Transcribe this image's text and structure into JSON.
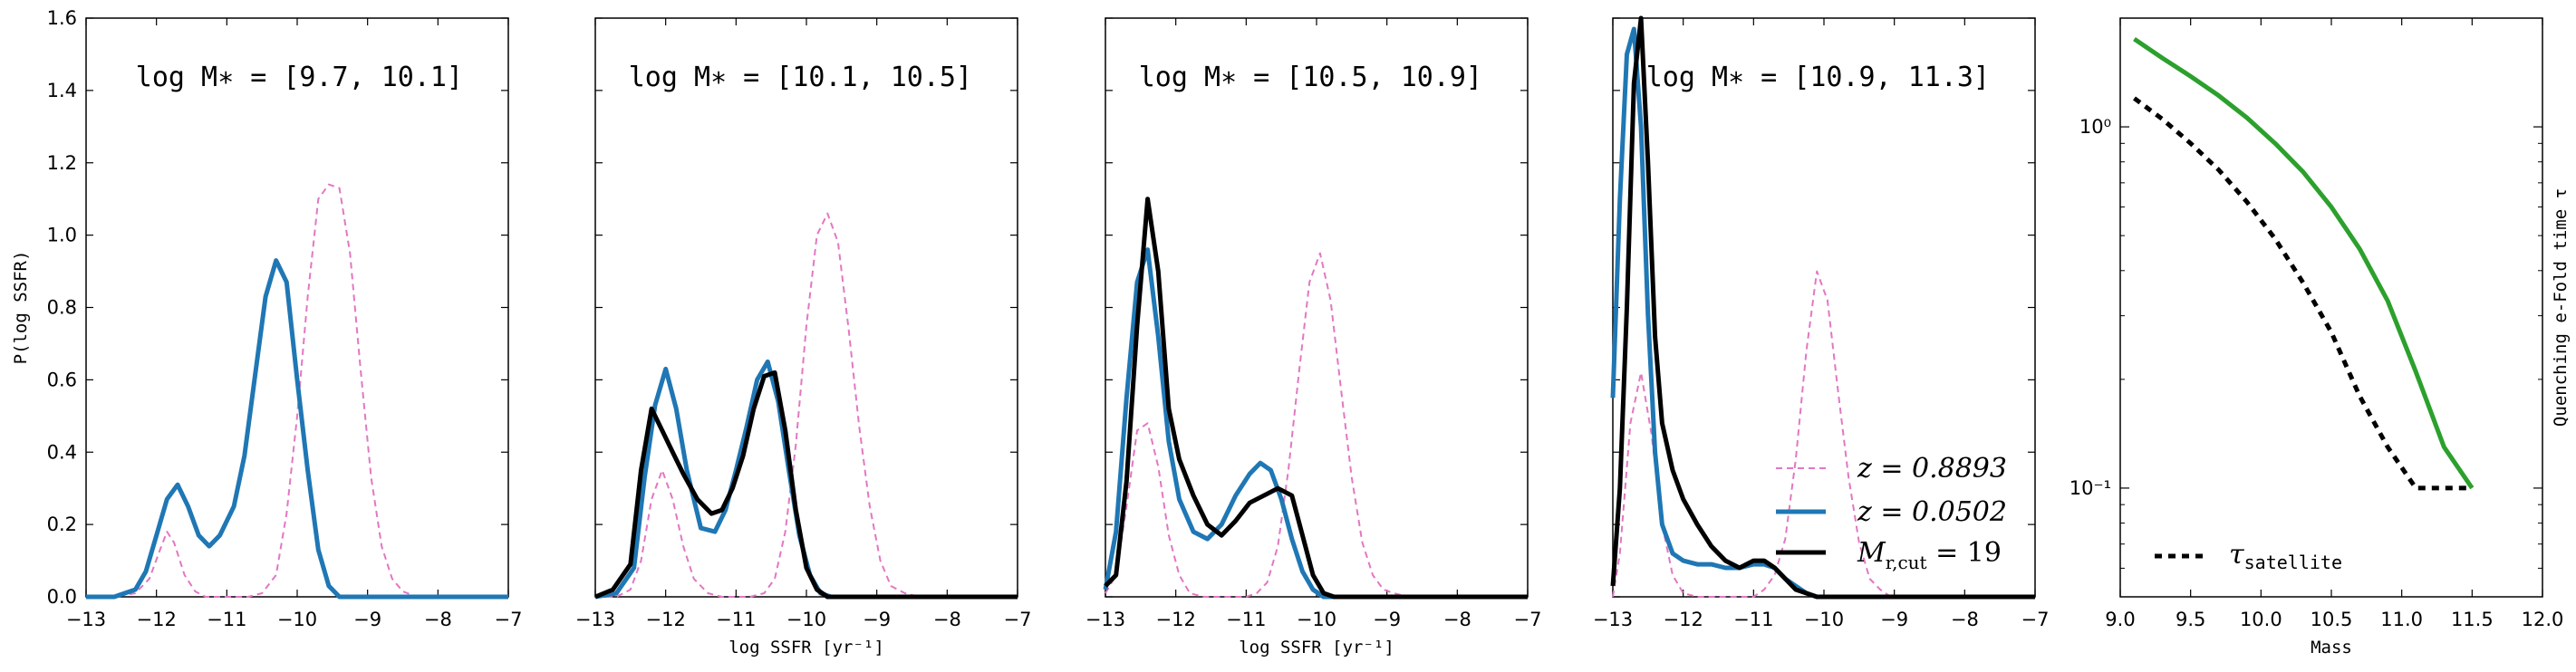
{
  "chart_data": [
    {
      "type": "line",
      "title": "log M∗ = [9.7, 10.1]",
      "xlim": [
        -13,
        -7
      ],
      "ylim": [
        0,
        1.6
      ],
      "xticks": [
        "−13",
        "−12",
        "−11",
        "−10",
        "−9",
        "−8",
        "−7"
      ],
      "yticks": [
        "0.0",
        "0.2",
        "0.4",
        "0.6",
        "0.8",
        "1.0",
        "1.2",
        "1.4",
        "1.6"
      ],
      "ylabel": "P(log SSFR)",
      "xlabel": "",
      "series": [
        {
          "name": "z = 0.8893",
          "color": "#e377c2",
          "dash": true,
          "x": [
            -13,
            -12.6,
            -12.3,
            -12.1,
            -11.95,
            -11.85,
            -11.75,
            -11.6,
            -11.45,
            -11.3,
            -11.1,
            -10.9,
            -10.7,
            -10.5,
            -10.3,
            -10.15,
            -10.0,
            -9.85,
            -9.7,
            -9.55,
            -9.4,
            -9.25,
            -9.1,
            -8.95,
            -8.8,
            -8.65,
            -8.5,
            -8.3,
            -8.1,
            -7
          ],
          "y": [
            0,
            0,
            0.01,
            0.05,
            0.13,
            0.18,
            0.15,
            0.06,
            0.015,
            0,
            0,
            0,
            0,
            0.01,
            0.06,
            0.23,
            0.5,
            0.83,
            1.1,
            1.14,
            1.13,
            0.95,
            0.63,
            0.33,
            0.14,
            0.05,
            0.015,
            0,
            0,
            0
          ]
        },
        {
          "name": "z = 0.0502",
          "color": "#1f77b4",
          "dash": false,
          "x": [
            -13,
            -12.6,
            -12.3,
            -12.15,
            -12.0,
            -11.85,
            -11.7,
            -11.55,
            -11.4,
            -11.25,
            -11.1,
            -10.9,
            -10.75,
            -10.6,
            -10.45,
            -10.3,
            -10.15,
            -10.0,
            -9.85,
            -9.7,
            -9.55,
            -9.4,
            -9.25,
            -9.1,
            -7
          ],
          "y": [
            0,
            0,
            0.02,
            0.07,
            0.17,
            0.27,
            0.31,
            0.25,
            0.17,
            0.14,
            0.17,
            0.25,
            0.39,
            0.61,
            0.83,
            0.93,
            0.87,
            0.6,
            0.35,
            0.13,
            0.03,
            0,
            0,
            0,
            0
          ]
        }
      ]
    },
    {
      "type": "line",
      "title": "log M∗ = [10.1, 10.5]",
      "xlim": [
        -13,
        -7
      ],
      "ylim": [
        0,
        1.6
      ],
      "xticks": [
        "−13",
        "−12",
        "−11",
        "−10",
        "−9",
        "−8",
        "−7"
      ],
      "xlabel": "log SSFR [yr⁻¹]",
      "series": [
        {
          "name": "z = 0.8893",
          "color": "#e377c2",
          "dash": true,
          "x": [
            -13,
            -12.7,
            -12.5,
            -12.35,
            -12.2,
            -12.05,
            -11.9,
            -11.75,
            -11.6,
            -11.4,
            -11.2,
            -11.0,
            -10.8,
            -10.6,
            -10.45,
            -10.3,
            -10.15,
            -10.0,
            -9.85,
            -9.7,
            -9.55,
            -9.4,
            -9.25,
            -9.1,
            -8.95,
            -8.8,
            -8.6,
            -8.4,
            -7
          ],
          "y": [
            0,
            0,
            0.02,
            0.1,
            0.27,
            0.35,
            0.27,
            0.14,
            0.05,
            0.01,
            0,
            0,
            0,
            0.01,
            0.05,
            0.18,
            0.42,
            0.75,
            1.0,
            1.06,
            0.98,
            0.74,
            0.47,
            0.25,
            0.1,
            0.03,
            0.01,
            0,
            0
          ]
        },
        {
          "name": "z = 0.0502",
          "color": "#1f77b4",
          "dash": false,
          "x": [
            -13,
            -12.7,
            -12.45,
            -12.3,
            -12.15,
            -12.0,
            -11.85,
            -11.7,
            -11.5,
            -11.3,
            -11.15,
            -11.0,
            -10.85,
            -10.7,
            -10.55,
            -10.4,
            -10.25,
            -10.1,
            -9.95,
            -9.8,
            -9.65,
            -9.5,
            -7
          ],
          "y": [
            0,
            0.01,
            0.08,
            0.33,
            0.53,
            0.63,
            0.52,
            0.35,
            0.19,
            0.18,
            0.24,
            0.35,
            0.47,
            0.6,
            0.65,
            0.54,
            0.35,
            0.17,
            0.06,
            0.01,
            0,
            0,
            0
          ]
        },
        {
          "name": "M r,cut = 19",
          "color": "#000000",
          "dash": false,
          "x": [
            -13,
            -12.75,
            -12.5,
            -12.35,
            -12.2,
            -12.05,
            -11.9,
            -11.75,
            -11.55,
            -11.35,
            -11.2,
            -11.05,
            -10.9,
            -10.75,
            -10.6,
            -10.45,
            -10.3,
            -10.15,
            -10.0,
            -9.85,
            -9.7,
            -9.55,
            -7
          ],
          "y": [
            0,
            0.02,
            0.09,
            0.35,
            0.52,
            0.46,
            0.4,
            0.34,
            0.27,
            0.23,
            0.24,
            0.3,
            0.39,
            0.52,
            0.61,
            0.62,
            0.46,
            0.24,
            0.08,
            0.02,
            0,
            0,
            0
          ]
        }
      ]
    },
    {
      "type": "line",
      "title": "log M∗ = [10.5, 10.9]",
      "xlim": [
        -13,
        -7
      ],
      "ylim": [
        0,
        1.6
      ],
      "xticks": [
        "−13",
        "−12",
        "−11",
        "−10",
        "−9",
        "−8",
        "−7"
      ],
      "xlabel": "log SSFR [yr⁻¹]",
      "series": [
        {
          "name": "z = 0.8893",
          "color": "#e377c2",
          "dash": true,
          "x": [
            -13,
            -12.85,
            -12.7,
            -12.55,
            -12.4,
            -12.25,
            -12.1,
            -11.95,
            -11.8,
            -11.6,
            -11.4,
            -11.2,
            -11.0,
            -10.85,
            -10.7,
            -10.55,
            -10.4,
            -10.25,
            -10.1,
            -9.95,
            -9.8,
            -9.65,
            -9.5,
            -9.35,
            -9.2,
            -9.05,
            -8.9,
            -8.7,
            -7
          ],
          "y": [
            0.01,
            0.06,
            0.25,
            0.46,
            0.48,
            0.36,
            0.17,
            0.06,
            0.01,
            0,
            0,
            0,
            0,
            0.01,
            0.04,
            0.14,
            0.35,
            0.62,
            0.87,
            0.95,
            0.82,
            0.57,
            0.33,
            0.15,
            0.06,
            0.02,
            0.01,
            0,
            0
          ]
        },
        {
          "name": "z = 0.0502",
          "color": "#1f77b4",
          "dash": false,
          "x": [
            -13,
            -12.85,
            -12.7,
            -12.55,
            -12.4,
            -12.25,
            -12.1,
            -11.95,
            -11.75,
            -11.55,
            -11.35,
            -11.15,
            -10.95,
            -10.8,
            -10.65,
            -10.5,
            -10.35,
            -10.2,
            -10.05,
            -9.9,
            -9.75,
            -9.6,
            -7
          ],
          "y": [
            0.02,
            0.18,
            0.55,
            0.87,
            0.96,
            0.72,
            0.43,
            0.27,
            0.18,
            0.16,
            0.2,
            0.28,
            0.34,
            0.37,
            0.35,
            0.27,
            0.16,
            0.07,
            0.02,
            0,
            0,
            0,
            0
          ]
        },
        {
          "name": "M r,cut = 19",
          "color": "#000000",
          "dash": false,
          "x": [
            -13,
            -12.85,
            -12.7,
            -12.55,
            -12.4,
            -12.25,
            -12.1,
            -11.95,
            -11.75,
            -11.55,
            -11.35,
            -11.15,
            -10.95,
            -10.75,
            -10.55,
            -10.35,
            -10.2,
            -10.05,
            -9.9,
            -9.75,
            -9.6,
            -9.45,
            -9.3,
            -7
          ],
          "y": [
            0.03,
            0.06,
            0.32,
            0.75,
            1.1,
            0.9,
            0.52,
            0.38,
            0.28,
            0.2,
            0.17,
            0.21,
            0.26,
            0.28,
            0.3,
            0.28,
            0.17,
            0.06,
            0.01,
            0,
            0,
            0,
            0,
            0
          ]
        }
      ]
    },
    {
      "type": "line",
      "title": "log M∗ = [10.9, 11.3]",
      "xlim": [
        -13,
        -7
      ],
      "ylim": [
        0,
        1.6
      ],
      "xticks": [
        "−13",
        "−12",
        "−11",
        "−10",
        "−9",
        "−8",
        "−7"
      ],
      "legend": {
        "position": "lower-right"
      },
      "series": [
        {
          "name": "z = 0.8893",
          "color": "#e377c2",
          "dash": true,
          "x": [
            -13,
            -12.9,
            -12.75,
            -12.6,
            -12.45,
            -12.3,
            -12.15,
            -12.0,
            -11.8,
            -11.6,
            -11.4,
            -11.2,
            -11.0,
            -10.85,
            -10.7,
            -10.55,
            -10.4,
            -10.25,
            -10.1,
            -9.95,
            -9.8,
            -9.65,
            -9.5,
            -9.35,
            -9.2,
            -9.05,
            -8.9,
            -7
          ],
          "y": [
            0,
            0.12,
            0.48,
            0.62,
            0.45,
            0.2,
            0.06,
            0.01,
            0,
            0,
            0,
            0,
            0,
            0.02,
            0.06,
            0.16,
            0.38,
            0.68,
            0.9,
            0.82,
            0.57,
            0.33,
            0.15,
            0.05,
            0.02,
            0,
            0,
            0
          ]
        },
        {
          "name": "z = 0.0502",
          "color": "#1f77b4",
          "dash": false,
          "x": [
            -13,
            -12.9,
            -12.8,
            -12.7,
            -12.6,
            -12.5,
            -12.4,
            -12.3,
            -12.15,
            -12.0,
            -11.8,
            -11.6,
            -11.4,
            -11.2,
            -11.0,
            -10.85,
            -10.7,
            -10.55,
            -10.4,
            -10.25,
            -10.1,
            -9.95,
            -7
          ],
          "y": [
            0.55,
            1.1,
            1.5,
            1.57,
            1.3,
            0.78,
            0.4,
            0.2,
            0.12,
            0.1,
            0.09,
            0.09,
            0.08,
            0.08,
            0.09,
            0.09,
            0.08,
            0.05,
            0.03,
            0.01,
            0,
            0,
            0
          ]
        },
        {
          "name": "M r,cut = 19",
          "color": "#000000",
          "dash": false,
          "x": [
            -13,
            -12.9,
            -12.8,
            -12.7,
            -12.6,
            -12.5,
            -12.4,
            -12.3,
            -12.15,
            -12.0,
            -11.8,
            -11.6,
            -11.4,
            -11.2,
            -11.0,
            -10.85,
            -10.7,
            -10.55,
            -10.4,
            -10.25,
            -10.1,
            -9.95,
            -7
          ],
          "y": [
            0.03,
            0.3,
            0.8,
            1.42,
            1.6,
            1.2,
            0.72,
            0.48,
            0.35,
            0.27,
            0.2,
            0.14,
            0.1,
            0.08,
            0.1,
            0.1,
            0.08,
            0.05,
            0.02,
            0.01,
            0,
            0,
            0
          ]
        }
      ],
      "legend_entries": [
        {
          "label": "z = 0.8893",
          "color": "#e377c2",
          "dash": true,
          "width": 2
        },
        {
          "label": "z = 0.0502",
          "color": "#1f77b4",
          "dash": false,
          "width": 5
        },
        {
          "label": "M r,cut = 19",
          "label_main": "M",
          "label_sub": "r,cut",
          "label_rest": " = 19",
          "color": "#000000",
          "dash": false,
          "width": 5
        }
      ]
    },
    {
      "type": "line",
      "title": "",
      "xlim": [
        9.0,
        12.0
      ],
      "ylim": [
        0.05,
        2.0
      ],
      "yscale": "log",
      "xticks": [
        "9.0",
        "9.5",
        "10.0",
        "10.5",
        "11.0",
        "11.5",
        "12.0"
      ],
      "yticks": [
        "10⁻¹",
        "10⁰"
      ],
      "xlabel": "Mass",
      "ylabel": "Quenching e-Fold time τ",
      "legend": {
        "position": "lower-left"
      },
      "series": [
        {
          "name": "",
          "color": "#2ca02c",
          "dash": false,
          "x": [
            9.1,
            9.3,
            9.5,
            9.7,
            9.9,
            10.1,
            10.3,
            10.5,
            10.7,
            10.9,
            11.1,
            11.3,
            11.5
          ],
          "y": [
            1.75,
            1.55,
            1.38,
            1.22,
            1.06,
            0.9,
            0.75,
            0.6,
            0.46,
            0.33,
            0.21,
            0.13,
            0.1
          ]
        },
        {
          "name": "τ satellite",
          "color": "#000000",
          "dash": true,
          "x": [
            9.1,
            9.3,
            9.5,
            9.7,
            9.9,
            10.1,
            10.3,
            10.5,
            10.7,
            10.9,
            11.1,
            11.3,
            11.5
          ],
          "y": [
            1.2,
            1.05,
            0.9,
            0.76,
            0.62,
            0.49,
            0.37,
            0.27,
            0.18,
            0.13,
            0.1,
            0.1,
            0.1
          ]
        }
      ],
      "legend_entries": [
        {
          "label_main": "τ",
          "label_sub": "satellite",
          "color": "#000000",
          "dash": true
        }
      ]
    }
  ]
}
